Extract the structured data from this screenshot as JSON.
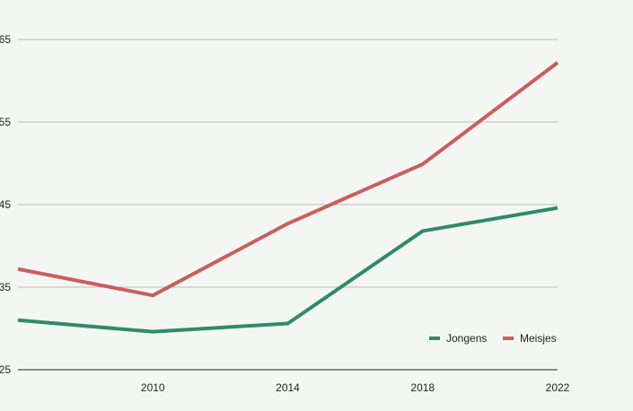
{
  "chart_data": {
    "type": "line",
    "x": [
      2006,
      2010,
      2014,
      2018,
      2022
    ],
    "x_ticks": [
      "2010",
      "2014",
      "2018",
      "2022"
    ],
    "y_ticks": [
      "25",
      "35",
      "45",
      "55",
      "65"
    ],
    "ylim": [
      25,
      65
    ],
    "xlim": [
      2006,
      2022
    ],
    "grid": true,
    "legend_position": "bottom-right",
    "series": [
      {
        "name": "Jongens",
        "color": "#2e8b6a",
        "values": [
          31.0,
          29.6,
          30.6,
          41.8,
          44.6
        ]
      },
      {
        "name": "Meisjes",
        "color": "#c95e5c",
        "values": [
          37.2,
          34.0,
          42.7,
          49.9,
          62.2
        ]
      }
    ]
  }
}
